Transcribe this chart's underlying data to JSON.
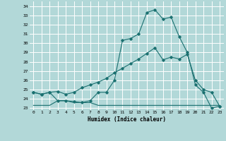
{
  "xlabel": "Humidex (Indice chaleur)",
  "bg_color": "#b2d8d8",
  "grid_color": "#ffffff",
  "line_color": "#1a7070",
  "xlim": [
    -0.5,
    23.5
  ],
  "ylim": [
    22.8,
    34.5
  ],
  "yticks": [
    23,
    24,
    25,
    26,
    27,
    28,
    29,
    30,
    31,
    32,
    33,
    34
  ],
  "xticks": [
    0,
    1,
    2,
    3,
    4,
    5,
    6,
    7,
    8,
    9,
    10,
    11,
    12,
    13,
    14,
    15,
    16,
    17,
    18,
    19,
    20,
    21,
    22,
    23
  ],
  "series1_x": [
    0,
    1,
    2,
    3,
    4,
    5,
    6,
    7,
    8,
    9,
    10,
    11,
    12,
    13,
    14,
    15,
    16,
    17,
    18,
    19,
    20,
    21,
    22,
    23
  ],
  "series1_y": [
    24.7,
    24.5,
    24.7,
    23.8,
    23.8,
    23.7,
    23.6,
    23.8,
    24.7,
    24.7,
    26.0,
    30.3,
    30.5,
    31.0,
    33.3,
    33.6,
    32.6,
    32.8,
    30.7,
    29.0,
    25.5,
    24.7,
    23.0,
    23.2
  ],
  "series2_x": [
    0,
    1,
    2,
    3,
    4,
    5,
    6,
    7,
    8,
    9,
    10,
    11,
    12,
    13,
    14,
    15,
    16,
    17,
    18,
    19,
    20,
    21,
    22,
    23
  ],
  "series2_y": [
    24.7,
    24.5,
    24.7,
    24.8,
    24.5,
    24.7,
    25.2,
    25.5,
    25.8,
    26.2,
    26.8,
    27.3,
    27.8,
    28.3,
    28.9,
    29.5,
    28.2,
    28.5,
    28.3,
    28.8,
    26.0,
    25.0,
    24.7,
    23.2
  ],
  "series3_x": [
    0,
    1,
    2,
    3,
    4,
    5,
    6,
    7,
    8,
    9,
    10,
    11,
    12,
    13,
    14,
    15,
    16,
    17,
    18,
    19,
    20,
    21,
    22,
    23
  ],
  "series3_y": [
    23.3,
    23.3,
    23.3,
    23.8,
    23.8,
    23.6,
    23.6,
    23.6,
    23.3,
    23.3,
    23.3,
    23.3,
    23.3,
    23.3,
    23.3,
    23.3,
    23.3,
    23.3,
    23.3,
    23.3,
    23.3,
    23.3,
    23.3,
    23.3
  ]
}
